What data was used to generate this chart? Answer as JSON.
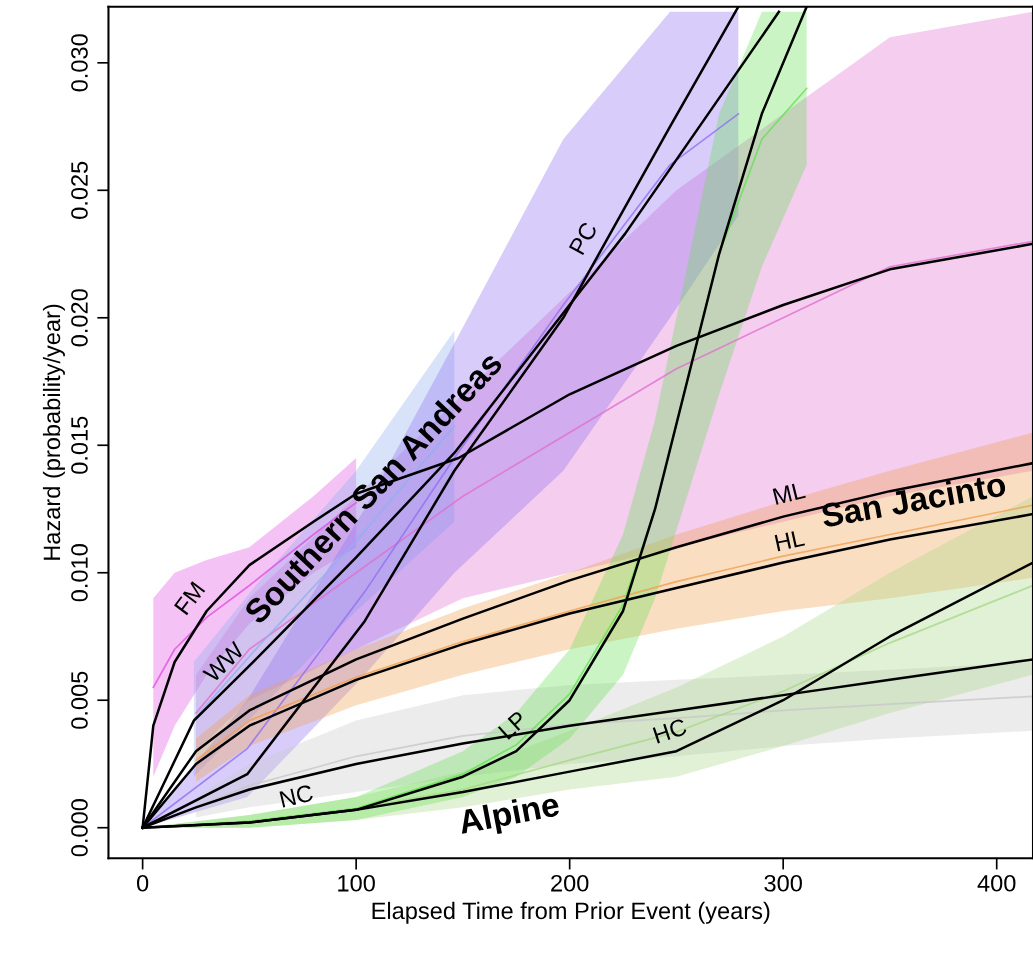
{
  "chart_data": {
    "type": "line",
    "xlabel": "Elapsed Time from Prior Event (years)",
    "ylabel": "Hazard (probability/year)",
    "xlim": [
      -16,
      417
    ],
    "xticks": [
      0,
      100,
      200,
      300,
      400
    ],
    "ylim": [
      -0.0012,
      0.0322
    ],
    "yticks": [
      {
        "value": 0,
        "label": "0.000"
      },
      {
        "value": 0.005,
        "label": "0.005"
      },
      {
        "value": 0.01,
        "label": "0.010"
      },
      {
        "value": 0.015,
        "label": "0.015"
      },
      {
        "value": 0.02,
        "label": "0.020"
      },
      {
        "value": 0.025,
        "label": "0.025"
      },
      {
        "value": 0.03,
        "label": "0.030"
      }
    ],
    "grid": false,
    "legend": false,
    "series": [
      {
        "color": "#e050e0",
        "x": [
          5,
          15,
          30,
          50,
          80,
          100
        ],
        "values": [
          0.0055,
          0.007,
          0.00825,
          0.0095,
          0.0115,
          0.01275
        ],
        "lower": [
          0.002,
          0.004,
          0.006,
          0.008,
          0.01,
          0.011
        ],
        "upper": [
          0.009,
          0.01,
          0.0105,
          0.011,
          0.013,
          0.0145
        ]
      },
      {
        "color": "#e070d0",
        "x": [
          25,
          50,
          100,
          150,
          200,
          250,
          300,
          350,
          417
        ],
        "values": [
          0.0045,
          0.007,
          0.01,
          0.013,
          0.0155,
          0.018,
          0.02,
          0.022,
          0.023
        ],
        "lower": [
          0.003,
          0.005,
          0.007,
          0.009,
          0.01,
          0.011,
          0.012,
          0.013,
          0.014
        ],
        "upper": [
          0.006,
          0.009,
          0.013,
          0.017,
          0.021,
          0.025,
          0.028,
          0.031,
          0.032
        ]
      },
      {
        "color": "#90b0f0",
        "x": [
          24,
          53,
          100,
          146
        ],
        "values": [
          0.00425,
          0.007,
          0.01125,
          0.01575
        ],
        "lower": [
          0.002,
          0.0045,
          0.0085,
          0.012
        ],
        "upper": [
          0.0065,
          0.0095,
          0.014,
          0.0195
        ]
      },
      {
        "color": "#9070f0",
        "x": [
          0,
          49,
          104,
          146,
          197,
          247,
          279
        ],
        "values": [
          0,
          0.0031,
          0.00925,
          0.0145,
          0.0205,
          0.026,
          0.028
        ],
        "lower": [
          0,
          0.0012,
          0.006,
          0.01,
          0.014,
          0.02,
          0.024
        ],
        "upper": [
          0,
          0.005,
          0.0125,
          0.019,
          0.027,
          0.032,
          0.032
        ]
      },
      {
        "color": "#f0a050",
        "x": [
          25,
          50,
          100,
          150,
          200,
          250,
          300,
          350,
          417
        ],
        "values": [
          0.00265,
          0.0042,
          0.0059,
          0.0073,
          0.0085,
          0.00965,
          0.01065,
          0.0115,
          0.01265
        ],
        "lower": [
          0.0018,
          0.0032,
          0.0048,
          0.006,
          0.007,
          0.0078,
          0.0085,
          0.009,
          0.0098
        ],
        "upper": [
          0.0035,
          0.0052,
          0.007,
          0.0086,
          0.01,
          0.0115,
          0.0128,
          0.014,
          0.0155
        ]
      },
      {
        "color": "#c8c8c8",
        "x": [
          25,
          50,
          100,
          150,
          200,
          250,
          300,
          350,
          417
        ],
        "values": [
          0.0008,
          0.00165,
          0.0028,
          0.0036,
          0.00405,
          0.0043,
          0.0046,
          0.00485,
          0.00515
        ],
        "lower": [
          0.0004,
          0.0008,
          0.0014,
          0.002,
          0.0025,
          0.0028,
          0.0032,
          0.0035,
          0.0038
        ],
        "upper": [
          0.0012,
          0.0025,
          0.0042,
          0.0052,
          0.0056,
          0.0058,
          0.006,
          0.0062,
          0.0065
        ]
      },
      {
        "color": "#a8d888",
        "x": [
          0,
          50,
          100,
          150,
          200,
          250,
          300,
          350,
          417
        ],
        "values": [
          0,
          0.00025,
          0.00075,
          0.0015,
          0.00265,
          0.00375,
          0.00535,
          0.00725,
          0.0095
        ],
        "lower": [
          0,
          0,
          0.0003,
          0.0008,
          0.0015,
          0.002,
          0.0032,
          0.0045,
          0.006
        ],
        "upper": [
          0,
          0.0005,
          0.0012,
          0.0022,
          0.0038,
          0.0055,
          0.0075,
          0.01,
          0.013
        ]
      },
      {
        "color": "#66e055",
        "x": [
          0,
          50,
          100,
          150,
          175,
          200,
          225,
          240,
          255,
          270,
          290,
          311
        ],
        "values": [
          0,
          0.00025,
          0.00075,
          0.0021,
          0.00325,
          0.00525,
          0.00875,
          0.0125,
          0.0175,
          0.0225,
          0.027,
          0.029
        ],
        "lower": [
          0,
          0,
          0.0003,
          0.0012,
          0.002,
          0.0035,
          0.006,
          0.009,
          0.013,
          0.017,
          0.022,
          0.026
        ],
        "upper": [
          0,
          0.0005,
          0.0012,
          0.003,
          0.0045,
          0.007,
          0.0115,
          0.016,
          0.022,
          0.028,
          0.032,
          0.032
        ]
      },
      {
        "color": "#000000",
        "x": [
          0,
          5,
          15,
          30,
          50,
          80,
          100,
          148,
          200,
          250,
          300,
          350,
          417
        ],
        "values": [
          0,
          0.004,
          0.0065,
          0.0085,
          0.0103,
          0.012,
          0.0131,
          0.0145,
          0.017,
          0.0189,
          0.0205,
          0.0219,
          0.0229
        ]
      },
      {
        "color": "#000000",
        "x": [
          0,
          24,
          53,
          100,
          146,
          226,
          298
        ],
        "values": [
          0,
          0.0042,
          0.0066,
          0.0106,
          0.0147,
          0.0233,
          0.032
        ]
      },
      {
        "color": "#000000",
        "x": [
          0,
          49,
          104,
          146,
          197,
          247,
          279
        ],
        "values": [
          0,
          0.0021,
          0.0081,
          0.014,
          0.02,
          0.0275,
          0.0322
        ]
      },
      {
        "color": "#000000",
        "x": [
          0,
          25,
          50,
          100,
          150,
          200,
          250,
          300,
          350,
          417
        ],
        "values": [
          0,
          0.003,
          0.0046,
          0.0066,
          0.0082,
          0.0097,
          0.011,
          0.0122,
          0.0132,
          0.0143
        ]
      },
      {
        "color": "#000000",
        "x": [
          0,
          25,
          50,
          100,
          150,
          200,
          250,
          300,
          350,
          417
        ],
        "values": [
          0,
          0.0025,
          0.004,
          0.0058,
          0.0072,
          0.0084,
          0.0094,
          0.0104,
          0.0113,
          0.0123
        ]
      },
      {
        "color": "#000000",
        "x": [
          0,
          25,
          50,
          100,
          150,
          200,
          250,
          300,
          350,
          417
        ],
        "values": [
          0,
          0.0008,
          0.0015,
          0.0025,
          0.0033,
          0.004,
          0.0046,
          0.0052,
          0.0058,
          0.0066
        ]
      },
      {
        "color": "#000000",
        "x": [
          0,
          50,
          100,
          150,
          200,
          250,
          300,
          350,
          417
        ],
        "values": [
          0,
          0.0002,
          0.0007,
          0.0014,
          0.0022,
          0.003,
          0.005,
          0.0075,
          0.0104
        ]
      },
      {
        "color": "#000000",
        "x": [
          0,
          50,
          100,
          150,
          175,
          200,
          225,
          240,
          255,
          270,
          290,
          311
        ],
        "values": [
          0,
          0.0002,
          0.0007,
          0.002,
          0.003,
          0.005,
          0.0085,
          0.0125,
          0.0175,
          0.0225,
          0.028,
          0.0322
        ]
      }
    ],
    "annotations": [
      {
        "text": "FM",
        "x": 30,
        "y": 0.0085
      },
      {
        "text": "WW",
        "x": 45,
        "y": 0.0059
      },
      {
        "text": "PC",
        "x": 215,
        "y": 0.0227
      },
      {
        "text": "LP",
        "x": 180,
        "y": 0.0034
      },
      {
        "text": "NC",
        "x": 70,
        "y": 0.0019
      },
      {
        "text": "HC",
        "x": 250,
        "y": 0.003
      },
      {
        "text": "ML",
        "x": 305,
        "y": 0.0123
      },
      {
        "text": "HL",
        "x": 305,
        "y": 0.01045
      },
      {
        "text": "Southern San Andreas",
        "x": 120,
        "y": 0.0124
      },
      {
        "text": "San Jacinto",
        "x": 364,
        "y": 0.0115
      },
      {
        "text": "Alpine",
        "x": 169,
        "y": 0.0017
      }
    ]
  }
}
